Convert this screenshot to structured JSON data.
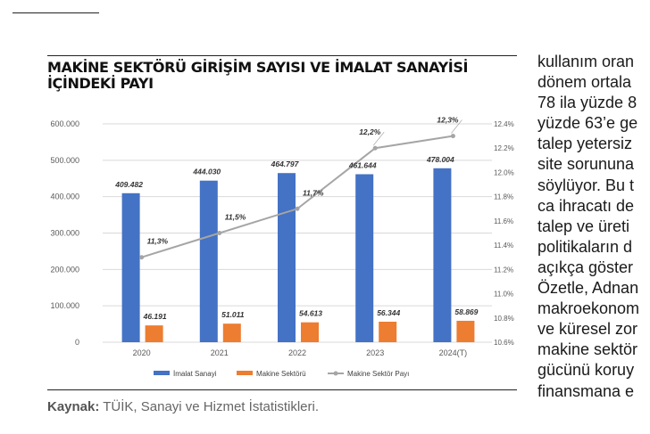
{
  "title": "MAKİNE SEKTÖRÜ GİRİŞİM SAYISI VE İMALAT SANAYİSİ İÇİNDEKİ PAYI",
  "source": {
    "label": "Kaynak:",
    "text": "TÜİK, Sanayi ve Hizmet İstatistikleri."
  },
  "right_column_lines": [
    "kullanım oran",
    "dönem ortala",
    "78 ila yüzde 8",
    "yüzde 63’e ge",
    "talep yetersiz",
    "site sorununa",
    "söylüyor. Bu t",
    "ca ihracatı de",
    "talep ve üreti",
    "politikaların d",
    "açıkça göster",
    "Özetle, Adnan",
    "makroekonom",
    "ve küresel zor",
    "makine sektör",
    "gücünü koruy",
    "finansmana e"
  ],
  "chart_data": {
    "type": "bar",
    "categories": [
      "2020",
      "2021",
      "2022",
      "2023",
      "2024(T)"
    ],
    "series": [
      {
        "name": "İmalat Sanayi",
        "kind": "bar",
        "axis": "left",
        "color": "#4472c4",
        "values": [
          409482,
          444030,
          464797,
          461644,
          478004
        ],
        "labels": [
          "409.482",
          "444.030",
          "464.797",
          "461.644",
          "478.004"
        ]
      },
      {
        "name": "Makine Sektörü",
        "kind": "bar",
        "axis": "left",
        "color": "#ed7d31",
        "values": [
          46191,
          51011,
          54613,
          56344,
          58869
        ],
        "labels": [
          "46.191",
          "51.011",
          "54.613",
          "56.344",
          "58.869"
        ]
      },
      {
        "name": "Makine Sektör Payı",
        "kind": "line",
        "axis": "right",
        "color": "#a5a5a5",
        "values": [
          11.3,
          11.5,
          11.7,
          12.2,
          12.3
        ],
        "labels": [
          "11,3%",
          "11,5%",
          "11,7%",
          "12,2%",
          "12,3%"
        ]
      }
    ],
    "y_left": {
      "min": 0,
      "max": 600000,
      "ticks": [
        0,
        100000,
        200000,
        300000,
        400000,
        500000,
        600000
      ],
      "tick_labels": [
        "0",
        "100.000",
        "200.000",
        "300.000",
        "400.000",
        "500.000",
        "600.000"
      ]
    },
    "y_right": {
      "min": 10.6,
      "max": 12.4,
      "ticks": [
        10.6,
        10.8,
        11.0,
        11.2,
        11.4,
        11.6,
        11.8,
        12.0,
        12.2,
        12.4
      ],
      "tick_labels": [
        "10.6%",
        "10.8%",
        "11.0%",
        "11.2%",
        "11.4%",
        "11.6%",
        "11.8%",
        "12.0%",
        "12.2%",
        "12.4%"
      ]
    },
    "grid": true,
    "legend": "bottom"
  }
}
